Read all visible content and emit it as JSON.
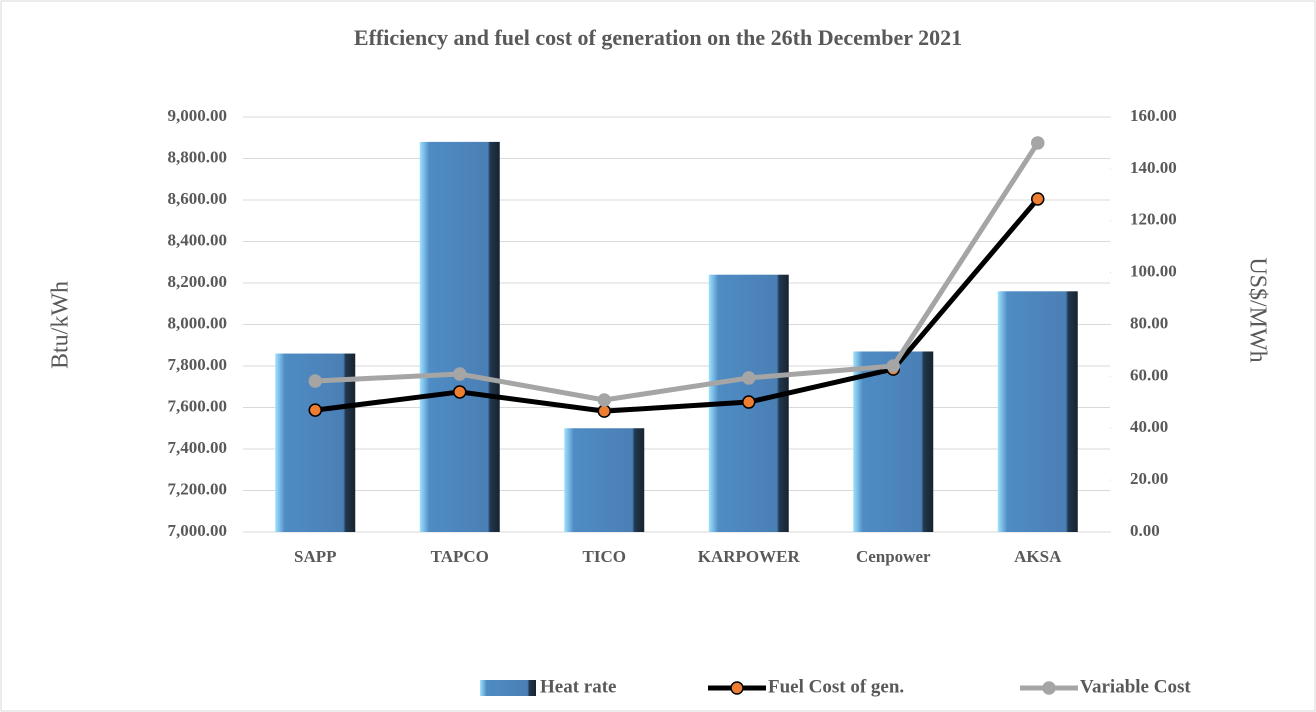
{
  "chart_data": {
    "type": "bar",
    "title": "Efficiency and fuel cost of generation on the 26th December 2021",
    "categories": [
      "SAPP",
      "TAPCO",
      "TICO",
      "KARPOWER",
      "Cenpower",
      "AKSA"
    ],
    "series": [
      {
        "name": "Heat rate",
        "type": "bar",
        "color": "#4a7fb5",
        "values": [
          7860,
          8880,
          7500,
          8240,
          7870,
          8160
        ]
      },
      {
        "name": "Fuel Cost of gen.",
        "type": "line",
        "axis": "y2",
        "color": "#000000",
        "marker_color": "#ed7d31",
        "values": [
          47.0,
          54.0,
          46.6,
          50.1,
          62.8,
          128.4
        ]
      },
      {
        "name": "Variable Cost",
        "type": "line",
        "axis": "y2",
        "color": "#a5a5a5",
        "marker_color": "#a5a5a5",
        "values": [
          58.2,
          60.9,
          50.9,
          59.4,
          64.0,
          150.0
        ]
      }
    ],
    "ylabel": "Btu/kWh",
    "y2label": "US$/MWh",
    "ylim": [
      7000,
      9000
    ],
    "yticks": [
      {
        "value": 7000,
        "label": "7,000.00"
      },
      {
        "value": 7200,
        "label": "7,200.00"
      },
      {
        "value": 7400,
        "label": "7,400.00"
      },
      {
        "value": 7600,
        "label": "7,600.00"
      },
      {
        "value": 7800,
        "label": "7,800.00"
      },
      {
        "value": 8000,
        "label": "8,000.00"
      },
      {
        "value": 8200,
        "label": "8,200.00"
      },
      {
        "value": 8400,
        "label": "8,400.00"
      },
      {
        "value": 8600,
        "label": "8,600.00"
      },
      {
        "value": 8800,
        "label": "8,800.00"
      },
      {
        "value": 9000,
        "label": "9,000.00"
      }
    ],
    "y2lim": [
      0,
      160
    ],
    "y2ticks": [
      {
        "value": 0,
        "label": "0.00"
      },
      {
        "value": 20,
        "label": "20.00"
      },
      {
        "value": 40,
        "label": "40.00"
      },
      {
        "value": 60,
        "label": "60.00"
      },
      {
        "value": 80,
        "label": "80.00"
      },
      {
        "value": 100,
        "label": "100.00"
      },
      {
        "value": 120,
        "label": "120.00"
      },
      {
        "value": 140,
        "label": "140.00"
      },
      {
        "value": 160,
        "label": "160.00"
      }
    ],
    "grid": true,
    "legend": "bottom"
  }
}
